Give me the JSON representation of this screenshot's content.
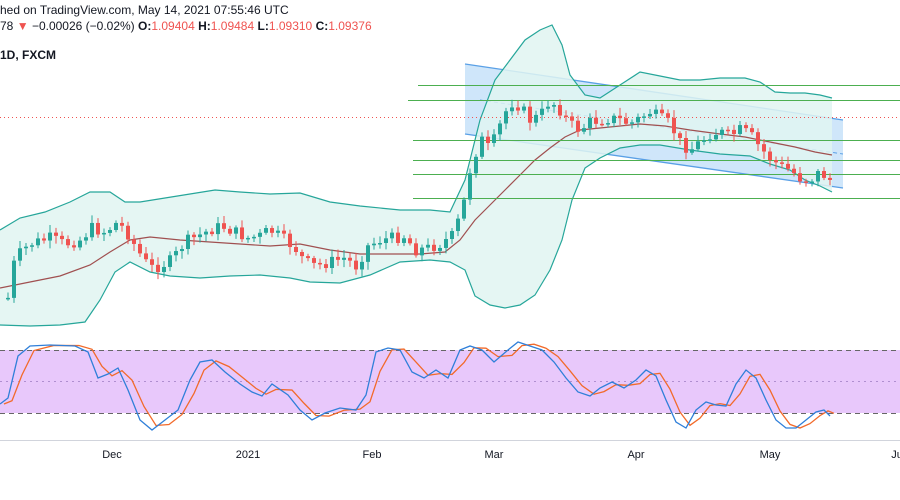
{
  "header": {
    "published": "hed on TradingView.com, May 14, 2021 07:55:46 UTC",
    "ohlc_prefix": "78",
    "change_arrow": "▼",
    "change": "−0.00026 (−0.02%)",
    "o_label": "O:",
    "o_value": "1.09404",
    "h_label": "H:",
    "h_value": "1.09484",
    "l_label": "L:",
    "l_value": "1.09310",
    "c_label": "C:",
    "c_value": "1.09376"
  },
  "symbol": "1D, FXCM",
  "colors": {
    "up": "#26a69a",
    "down": "#ef5350",
    "bollinger": "#26a69a",
    "bollinger_fill": "#e0f4f1",
    "basis": "#a05050",
    "channel": "#5aa0e6",
    "channel_fill": "#cfe6fa",
    "hlines": "#4caf50",
    "price_line": "#ef5350",
    "stoch_bg": "#e8c8fb",
    "stoch_k": "#2f7fd9",
    "stoch_d": "#f26a2a"
  },
  "chart_data": {
    "type": "candlestick",
    "x_ticks": [
      "Dec",
      "2021",
      "Feb",
      "Mar",
      "Apr",
      "May",
      "Ju"
    ],
    "y_range": [
      1.082,
      1.098
    ],
    "horizontal_levels": [
      1.0955,
      1.0947,
      1.0925,
      1.0914,
      1.0906,
      1.0893
    ],
    "last_price": 1.09376,
    "bollinger_bands": true,
    "descending_channel": true,
    "stochastic": {
      "upper_level": 80,
      "lower_level": 20,
      "range": [
        0,
        100
      ]
    }
  }
}
